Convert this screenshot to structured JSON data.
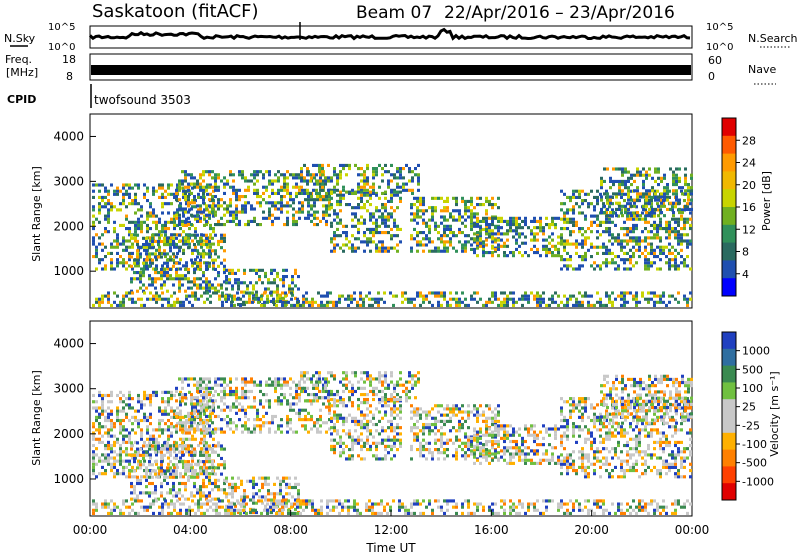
{
  "header": {
    "station": "Saskatoon (fitACF)",
    "beam": "Beam 07",
    "date_range": "22/Apr/2016 – 23/Apr/2016"
  },
  "status_panels": {
    "nsky_label": "N.Sky",
    "nsearch_label": "N.Search",
    "nsky_ticks": [
      "10^5",
      "10^0"
    ],
    "nsearch_ticks": [
      "10^5",
      "10^0"
    ],
    "freq_label_1": "Freq.",
    "freq_label_2": "[MHz]",
    "freq_ticks": [
      "18",
      "8"
    ],
    "nave_label": "Nave",
    "nave_ticks": [
      "60",
      "0"
    ],
    "cpid_label": "CPID",
    "cpid_value": "twofsound 3503"
  },
  "chart_data": [
    {
      "type": "heatmap",
      "name": "power",
      "ylabel": "Slant Range [km]",
      "colorbar_label": "Power [dB]",
      "yticks": [
        "4000",
        "3000",
        "2000",
        "1000"
      ],
      "ylim": [
        180,
        4500
      ],
      "colorbar": {
        "ticks": [
          "28",
          "24",
          "20",
          "16",
          "12",
          "8",
          "4"
        ],
        "colors": [
          "#e00000",
          "#ff5a00",
          "#ff9a00",
          "#f0b800",
          "#c8d400",
          "#70b020",
          "#30905a",
          "#2a6a60",
          "#1f4fb0",
          "#0000ff"
        ]
      }
    },
    {
      "type": "heatmap",
      "name": "velocity",
      "ylabel": "Slant Range [km]",
      "colorbar_label": "Velocity [m s⁻¹]",
      "yticks": [
        "4000",
        "3000",
        "2000",
        "1000"
      ],
      "ylim": [
        180,
        4500
      ],
      "colorbar": {
        "ticks": [
          "1000",
          "500",
          "100",
          "25",
          "-25",
          "-100",
          "-500",
          "-1000"
        ],
        "colors": [
          "#2040c0",
          "#2f6ea0",
          "#3a8a50",
          "#70c040",
          "#c8c8c8",
          "#c8c8c8",
          "#ffb000",
          "#ff8000",
          "#ff4000",
          "#e00000"
        ]
      }
    }
  ],
  "xaxis": {
    "label": "Time UT",
    "ticks": [
      "00:00",
      "04:00",
      "08:00",
      "12:00",
      "16:00",
      "20:00",
      "00:00"
    ]
  }
}
